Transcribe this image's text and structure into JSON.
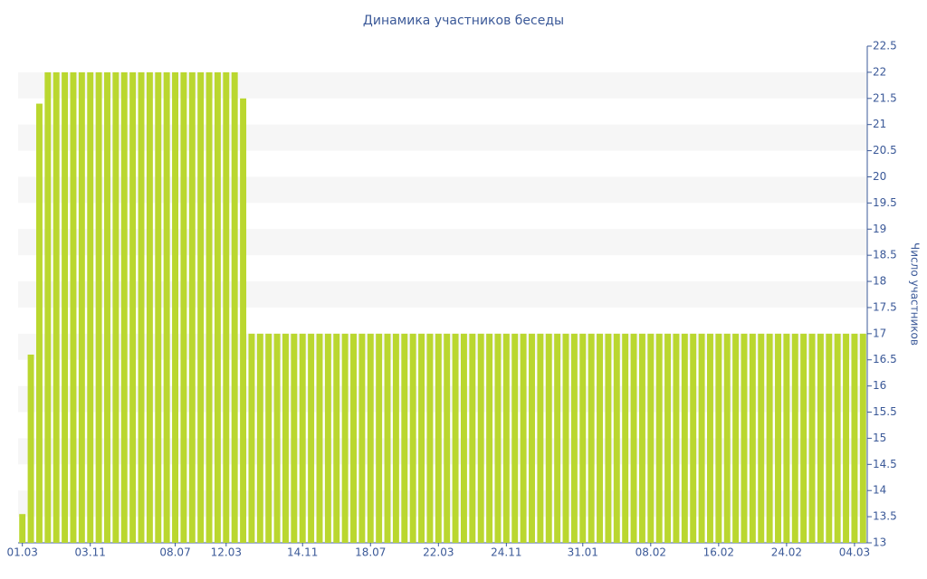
{
  "chart_data": {
    "type": "bar",
    "title": "Динамика участников беседы",
    "y_axis_label": "Число участников",
    "color": "#bad72f",
    "grid": true,
    "ylim": [
      13,
      22.5
    ],
    "yticks": [
      13,
      13.5,
      14,
      14.5,
      15,
      15.5,
      16,
      16.5,
      17,
      17.5,
      18,
      18.5,
      19,
      19.5,
      20,
      20.5,
      21,
      21.5,
      22,
      22.5
    ],
    "categories": [
      "01.03",
      null,
      null,
      null,
      null,
      null,
      null,
      null,
      "03.11",
      null,
      null,
      null,
      null,
      null,
      null,
      null,
      null,
      null,
      "08.07",
      null,
      null,
      null,
      null,
      null,
      "12.03",
      null,
      null,
      null,
      null,
      null,
      null,
      null,
      null,
      "14.11",
      null,
      null,
      null,
      null,
      null,
      null,
      null,
      "18.07",
      null,
      null,
      null,
      null,
      null,
      null,
      null,
      "22.03",
      null,
      null,
      null,
      null,
      null,
      null,
      null,
      "24.11",
      null,
      null,
      null,
      null,
      null,
      null,
      null,
      null,
      "31.01",
      null,
      null,
      null,
      null,
      null,
      null,
      null,
      "08.02",
      null,
      null,
      null,
      null,
      null,
      null,
      null,
      "16.02",
      null,
      null,
      null,
      null,
      null,
      null,
      null,
      "24.02",
      null,
      null,
      null,
      null,
      null,
      null,
      null,
      "04.03",
      null
    ],
    "values": [
      13.55,
      16.6,
      21.4,
      22,
      22,
      22,
      22,
      22,
      22,
      22,
      22,
      22,
      22,
      22,
      22,
      22,
      22,
      22,
      22,
      22,
      22,
      22,
      22,
      22,
      22,
      22,
      21.5,
      17,
      17,
      17,
      17,
      17,
      17,
      17,
      17,
      17,
      17,
      17,
      17,
      17,
      17,
      17,
      17,
      17,
      17,
      17,
      17,
      17,
      17,
      17,
      17,
      17,
      17,
      17,
      17,
      17,
      17,
      17,
      17,
      17,
      17,
      17,
      17,
      17,
      17,
      17,
      17,
      17,
      17,
      17,
      17,
      17,
      17,
      17,
      17,
      17,
      17,
      17,
      17,
      17,
      17,
      17,
      17,
      17,
      17,
      17,
      17,
      17,
      17,
      17,
      17,
      17,
      17,
      17,
      17,
      17,
      17,
      17,
      17,
      17
    ]
  }
}
